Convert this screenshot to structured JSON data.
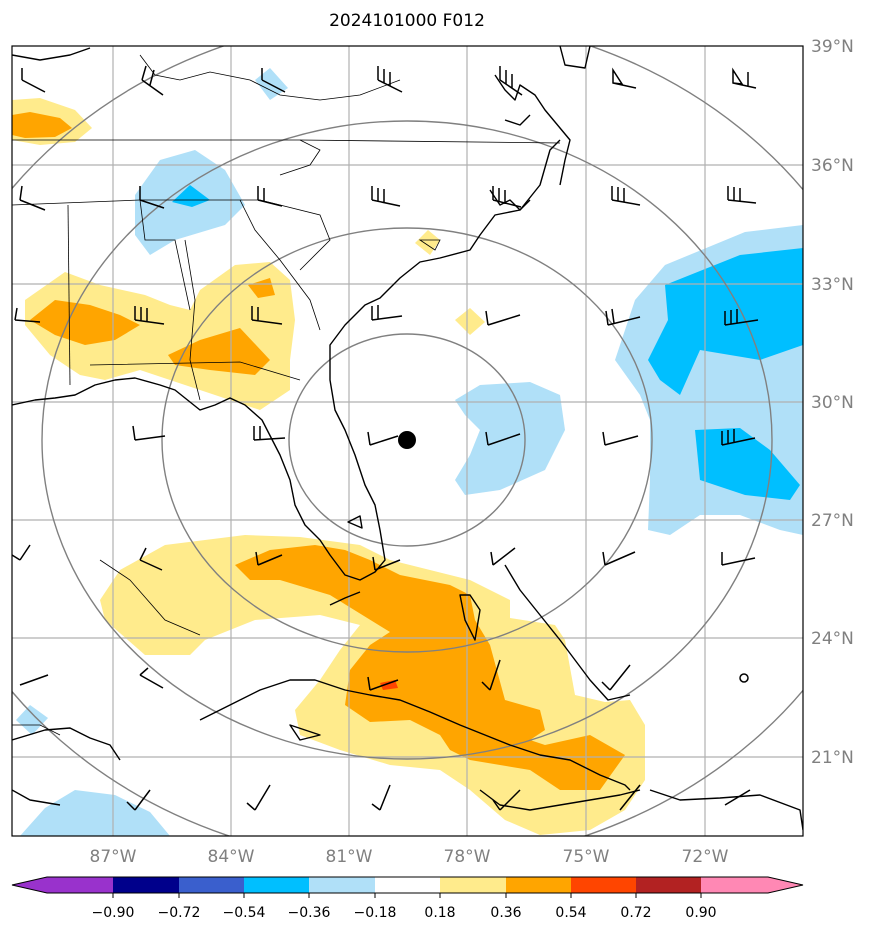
{
  "title": "2024101000 F012",
  "map": {
    "latitude_labels": [
      "39°N",
      "36°N",
      "33°N",
      "30°N",
      "27°N",
      "24°N",
      "21°N"
    ],
    "longitude_labels": [
      "87°W",
      "84°W",
      "81°W",
      "78°W",
      "75°W",
      "72°W"
    ],
    "center_marker": {
      "name": "storm-center",
      "lon": -79.0,
      "lat": 29.0
    },
    "range_rings_count": 4
  },
  "colorbar": {
    "tick_labels": [
      "−0.90",
      "−0.72",
      "−0.54",
      "−0.36",
      "−0.18",
      "0.18",
      "0.36",
      "0.54",
      "0.72",
      "0.90"
    ],
    "colors": [
      "#9932cc",
      "#00008b",
      "#3a5fcd",
      "#00bfff",
      "#b0e0f8",
      "#ffffff",
      "#ffeb8c",
      "#ffa500",
      "#ff4500",
      "#b22222",
      "#ff88b4"
    ]
  },
  "fill_colors": {
    "light_blue": "#b0e0f8",
    "blue": "#00bfff",
    "light_yellow": "#ffeb8c",
    "orange": "#ffa500",
    "red_orange": "#ff4500"
  }
}
